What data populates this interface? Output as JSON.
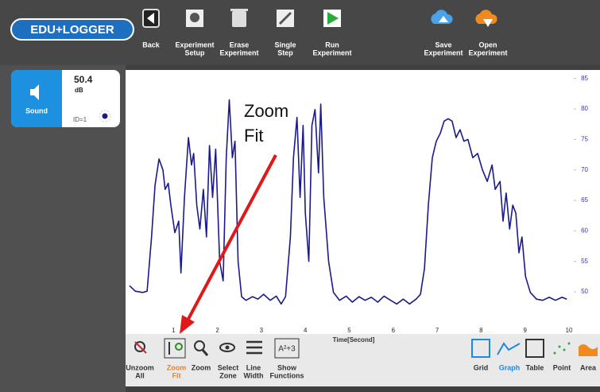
{
  "logo": "EDU+LOGGER",
  "toolbar": [
    {
      "lines": [
        "Back"
      ]
    },
    {
      "lines": [
        "Experiment",
        "Setup"
      ]
    },
    {
      "lines": [
        "Erase",
        "Experiment"
      ]
    },
    {
      "lines": [
        "Single",
        "Step"
      ]
    },
    {
      "lines": [
        "Run",
        "Experiment"
      ]
    },
    {
      "lines": [
        "Save",
        "Experiment"
      ]
    },
    {
      "lines": [
        "Open",
        "Experiment"
      ]
    }
  ],
  "sensor": {
    "value": "50.4",
    "unit": "dB",
    "name": "Sound",
    "id": "ID=1"
  },
  "chart_data": {
    "type": "line",
    "x_label": "Time[Second]",
    "color": "#1a1a8c",
    "x": [
      0,
      0.13,
      0.3,
      0.4,
      0.5,
      0.58,
      0.67,
      0.76,
      0.81,
      0.88,
      0.94,
      1.03,
      1.12,
      1.17,
      1.25,
      1.34,
      1.41,
      1.46,
      1.53,
      1.6,
      1.68,
      1.75,
      1.82,
      1.89,
      1.96,
      2.05,
      2.13,
      2.2,
      2.27,
      2.34,
      2.4,
      2.47,
      2.55,
      2.65,
      2.8,
      2.92,
      3.05,
      3.2,
      3.34,
      3.45,
      3.55,
      3.66,
      3.73,
      3.81,
      3.88,
      3.95,
      4.0,
      4.08,
      4.15,
      4.22,
      4.3,
      4.35,
      4.42,
      4.53,
      4.64,
      4.78,
      4.93,
      5.07,
      5.22,
      5.36,
      5.5,
      5.65,
      5.79,
      5.94,
      6.08,
      6.23,
      6.37,
      6.52,
      6.62,
      6.71,
      6.8,
      6.89,
      6.98,
      7.07,
      7.16,
      7.25,
      7.34,
      7.43,
      7.52,
      7.61,
      7.7,
      7.81,
      7.92,
      8.03,
      8.14,
      8.25,
      8.32,
      8.43,
      8.5,
      8.57,
      8.65,
      8.72,
      8.79,
      8.86,
      8.93,
      9.01,
      9.12,
      9.26,
      9.4,
      9.55,
      9.69,
      9.84,
      9.95
    ],
    "values": [
      51.0,
      50.1,
      49.9,
      50.1,
      59,
      67.5,
      71.8,
      70,
      66.8,
      67.8,
      64.2,
      59.7,
      61.6,
      53.1,
      65.5,
      75.3,
      70.8,
      72.7,
      64.2,
      60.3,
      66.8,
      59,
      74,
      65.5,
      73.4,
      55,
      51.8,
      72,
      81.5,
      72,
      74.7,
      55,
      49.2,
      48.6,
      49.2,
      48.8,
      49.6,
      48.6,
      49.3,
      48,
      49.2,
      59,
      72,
      78.6,
      65.5,
      77.3,
      62.9,
      55,
      77.3,
      79.9,
      69.5,
      80.8,
      65.5,
      55,
      49.9,
      48.6,
      49.3,
      48.3,
      49.2,
      48.6,
      49.1,
      48.3,
      49.3,
      48.6,
      48,
      48.8,
      48,
      48.8,
      49.6,
      53.8,
      64.2,
      72,
      74.7,
      76,
      78,
      78.4,
      78,
      75.3,
      76.6,
      74.7,
      75,
      72,
      72.7,
      70,
      68.1,
      70.8,
      66.8,
      68.1,
      61.6,
      66.2,
      60.3,
      64.2,
      62.9,
      56.4,
      59,
      52.5,
      49.9,
      48.8,
      48.6,
      49.1,
      48.6,
      49.1,
      48.8
    ],
    "xlim": [
      0,
      10
    ],
    "ylim": [
      44,
      86
    ],
    "xticks": [
      1,
      2,
      3,
      4,
      5,
      6,
      7,
      8,
      9,
      10
    ],
    "yticks": [
      50,
      55,
      60,
      65,
      70,
      75,
      80,
      85
    ]
  },
  "annotation": {
    "lines": [
      "Zoom",
      "Fit"
    ]
  },
  "bottom_left": [
    {
      "lines": [
        "Unzoom",
        "All"
      ]
    },
    {
      "lines": [
        "Zoom",
        "Fit"
      ],
      "color": "#f07f1e"
    },
    {
      "lines": [
        "Zoom"
      ]
    },
    {
      "lines": [
        "Select",
        "Zone"
      ]
    },
    {
      "lines": [
        "Line",
        "Width"
      ]
    },
    {
      "lines": [
        "Show",
        "Functions"
      ]
    }
  ],
  "bottom_right": [
    {
      "lines": [
        "Grid"
      ]
    },
    {
      "lines": [
        "Graph"
      ],
      "color": "#1e88e5"
    },
    {
      "lines": [
        "Table"
      ]
    },
    {
      "lines": [
        "Point"
      ]
    },
    {
      "lines": [
        "Area"
      ]
    }
  ]
}
